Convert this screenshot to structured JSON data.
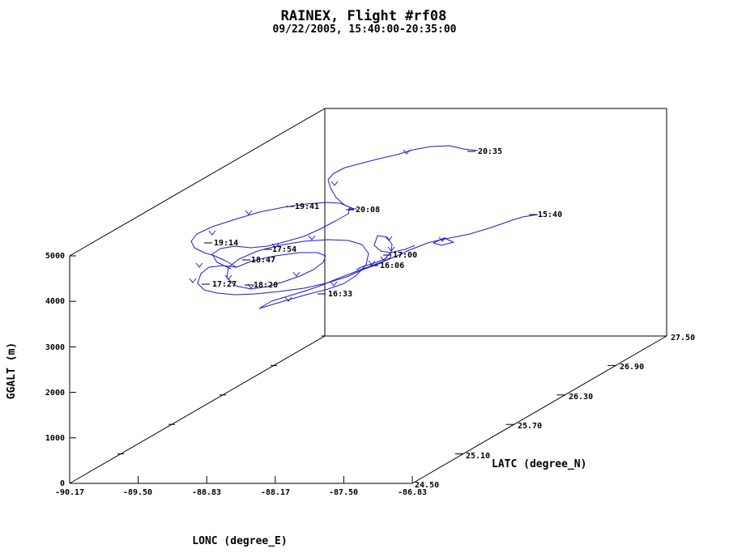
{
  "chart_data": {
    "type": "line",
    "title": "RAINEX, Flight #rf08",
    "subtitle": "09/22/2005, 15:40:00-20:35:00",
    "xlabel": "LONC (degree_E)",
    "ylabel": "LATC (degree_N)",
    "zlabel": "GGALT (m)",
    "x_ticks": [
      "-90.17",
      "-89.50",
      "-88.83",
      "-88.17",
      "-87.50",
      "-86.83"
    ],
    "y_ticks": [
      "24.50",
      "25.10",
      "25.70",
      "26.30",
      "26.90",
      "27.50"
    ],
    "z_ticks": [
      "0",
      "1000",
      "2000",
      "3000",
      "4000",
      "5000"
    ],
    "xlim": [
      -90.17,
      -86.83
    ],
    "ylim": [
      24.5,
      27.5
    ],
    "zlim": [
      0,
      5000
    ],
    "line_color": "#1c1ccf",
    "time_labels": [
      "15:40",
      "16:06",
      "16:33",
      "17:00",
      "17:27",
      "17:54",
      "18:20",
      "18:47",
      "19:14",
      "19:41",
      "20:08",
      "20:35"
    ]
  }
}
